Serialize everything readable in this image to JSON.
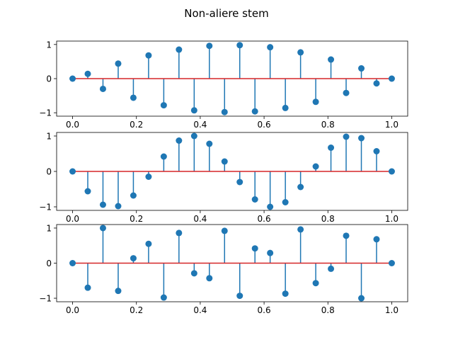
{
  "figure": {
    "title": "Non-aliere stem"
  },
  "colors": {
    "stem": "#1f77b4",
    "marker": "#1f77b4",
    "baseline": "#d62728",
    "axes": "#000000",
    "background": "#ffffff"
  },
  "chart_data": [
    {
      "type": "stem",
      "xlim": [
        -0.05,
        1.05
      ],
      "ylim": [
        -1.1,
        1.1
      ],
      "xticks": [
        0.0,
        0.2,
        0.4,
        0.6,
        0.8,
        1.0
      ],
      "xtick_labels": [
        "0.0",
        "0.2",
        "0.4",
        "0.6",
        "0.8",
        "1.0"
      ],
      "yticks": [
        -1,
        0,
        1
      ],
      "ytick_labels": [
        "−1",
        "0",
        "1"
      ],
      "baseline": 0,
      "x": [
        0.0,
        0.0476,
        0.0952,
        0.1429,
        0.1905,
        0.2381,
        0.2857,
        0.3333,
        0.381,
        0.4286,
        0.4762,
        0.5238,
        0.5714,
        0.619,
        0.6667,
        0.7143,
        0.7619,
        0.8095,
        0.8571,
        0.9048,
        0.9524,
        1.0
      ],
      "y": [
        0.0,
        0.14,
        -0.3,
        0.44,
        -0.56,
        0.68,
        -0.78,
        0.85,
        -0.93,
        0.96,
        -0.98,
        0.98,
        -0.96,
        0.92,
        -0.86,
        0.77,
        -0.68,
        0.56,
        -0.42,
        0.3,
        -0.14,
        0.0
      ]
    },
    {
      "type": "stem",
      "xlim": [
        -0.05,
        1.05
      ],
      "ylim": [
        -1.1,
        1.1
      ],
      "xticks": [
        0.0,
        0.2,
        0.4,
        0.6,
        0.8,
        1.0
      ],
      "xtick_labels": [
        "0.0",
        "0.2",
        "0.4",
        "0.6",
        "0.8",
        "1.0"
      ],
      "yticks": [
        -1,
        0,
        1
      ],
      "ytick_labels": [
        "−1",
        "0",
        "1"
      ],
      "baseline": 0,
      "x": [
        0.0,
        0.0476,
        0.0952,
        0.1429,
        0.1905,
        0.2381,
        0.2857,
        0.3333,
        0.381,
        0.4286,
        0.4762,
        0.5238,
        0.5714,
        0.619,
        0.6667,
        0.7143,
        0.7619,
        0.8095,
        0.8571,
        0.9048,
        0.9524,
        1.0
      ],
      "y": [
        0.0,
        -0.56,
        -0.94,
        -0.98,
        -0.68,
        -0.15,
        0.42,
        0.87,
        1.0,
        0.78,
        0.28,
        -0.3,
        -0.79,
        -1.0,
        -0.87,
        -0.44,
        0.14,
        0.67,
        0.98,
        0.94,
        0.57,
        0.0
      ]
    },
    {
      "type": "stem",
      "xlim": [
        -0.05,
        1.05
      ],
      "ylim": [
        -1.1,
        1.1
      ],
      "xticks": [
        0.0,
        0.2,
        0.4,
        0.6,
        0.8,
        1.0
      ],
      "xtick_labels": [
        "0.0",
        "0.2",
        "0.4",
        "0.6",
        "0.8",
        "1.0"
      ],
      "yticks": [
        -1,
        0,
        1
      ],
      "ytick_labels": [
        "−1",
        "0",
        "1"
      ],
      "baseline": 0,
      "x": [
        0.0,
        0.0476,
        0.0952,
        0.1429,
        0.1905,
        0.2381,
        0.2857,
        0.3333,
        0.381,
        0.4286,
        0.4762,
        0.5238,
        0.5714,
        0.619,
        0.6667,
        0.7143,
        0.7619,
        0.8095,
        0.8571,
        0.9048,
        0.9524,
        1.0
      ],
      "y": [
        0.0,
        -0.7,
        1.0,
        -0.79,
        0.14,
        0.55,
        -0.98,
        0.86,
        -0.29,
        -0.43,
        0.92,
        -0.93,
        0.42,
        0.29,
        -0.87,
        0.96,
        -0.57,
        -0.16,
        0.78,
        -1.0,
        0.68,
        0.0
      ]
    }
  ]
}
